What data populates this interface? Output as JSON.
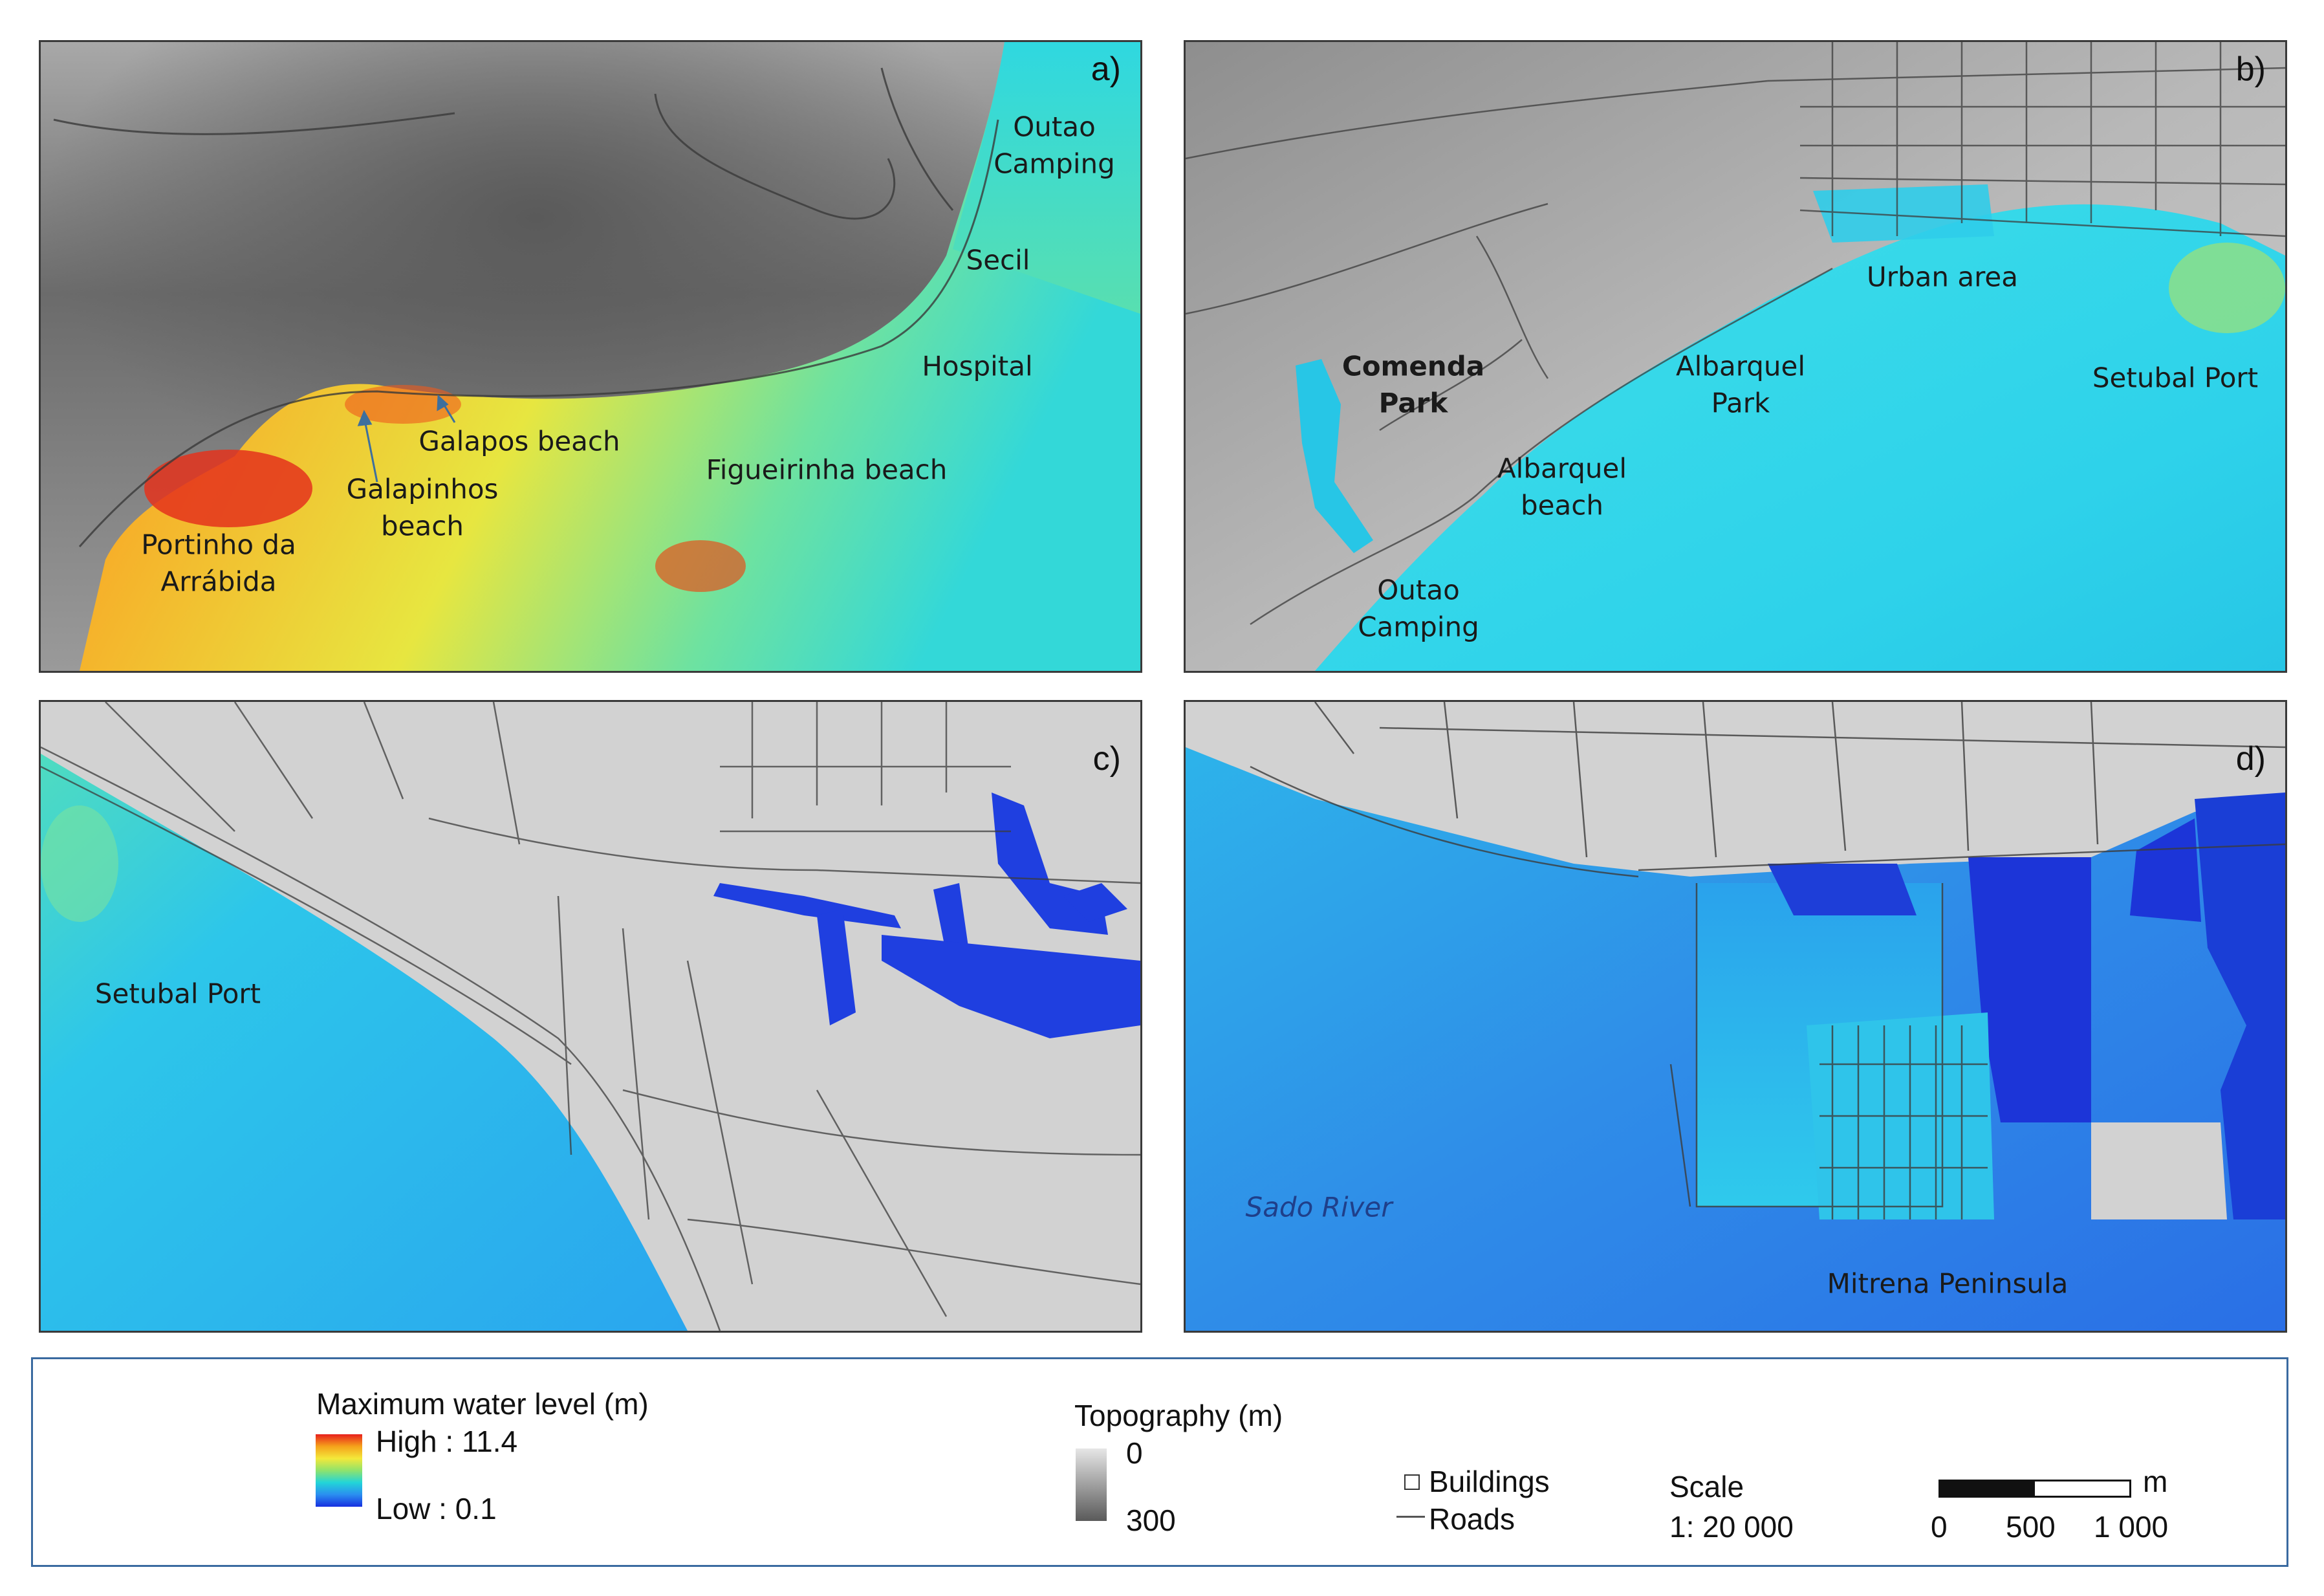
{
  "panels": [
    {
      "id": "a",
      "letter": "a)",
      "labels": [
        {
          "key": "outao_camping",
          "text": "Outao\nCamping"
        },
        {
          "key": "secil",
          "text": "Secil"
        },
        {
          "key": "hospital",
          "text": "Hospital"
        },
        {
          "key": "galapos_beach",
          "text": "Galapos beach"
        },
        {
          "key": "galapinhos_beach",
          "text": "Galapinhos\nbeach"
        },
        {
          "key": "figueirinha_beach",
          "text": "Figueirinha beach"
        },
        {
          "key": "portinho",
          "text": "Portinho da\nArrábida"
        }
      ]
    },
    {
      "id": "b",
      "letter": "b)",
      "labels": [
        {
          "key": "urban_area",
          "text": "Urban area"
        },
        {
          "key": "comenda_park",
          "text": "Comenda\nPark"
        },
        {
          "key": "albarquel_park",
          "text": "Albarquel\nPark"
        },
        {
          "key": "setubal_port",
          "text": "Setubal Port"
        },
        {
          "key": "albarquel_beach",
          "text": "Albarquel\nbeach"
        },
        {
          "key": "outao_camping_b",
          "text": "Outao\nCamping"
        }
      ]
    },
    {
      "id": "c",
      "letter": "c)",
      "labels": [
        {
          "key": "setubal_port_c",
          "text": "Setubal Port"
        }
      ]
    },
    {
      "id": "d",
      "letter": "d)",
      "labels": [
        {
          "key": "sado_river",
          "text": "Sado River"
        },
        {
          "key": "mitrena",
          "text": "Mitrena Peninsula"
        }
      ]
    }
  ],
  "legend": {
    "water_title": "Maximum water level (m)",
    "water_high": "High : 11.4",
    "water_low": "Low : 0.1",
    "water_colors": [
      "#e8201c",
      "#f5a21b",
      "#f4e83a",
      "#8fe36c",
      "#22d5d8",
      "#2a8ef0",
      "#1730e0"
    ],
    "topo_title": "Topography (m)",
    "topo_min": "0",
    "topo_max": "300",
    "buildings": "Buildings",
    "roads": "Roads",
    "scale_title": "Scale",
    "scale_ratio": "1: 20 000",
    "scalebar_ticks": [
      "0",
      "500",
      "1 000"
    ],
    "scalebar_unit": "m"
  }
}
